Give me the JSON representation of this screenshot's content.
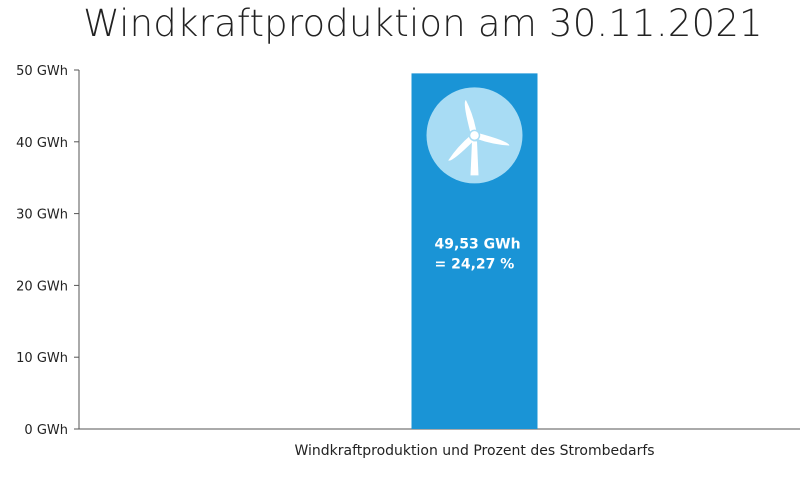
{
  "chart_data": {
    "type": "bar",
    "title": "Windkraftproduktion am 30.11.2021",
    "categories": [
      "Windkraftproduktion und Prozent des Strombedarfs"
    ],
    "values": [
      49.53
    ],
    "ylim": [
      0,
      50
    ],
    "yticks": [
      "0 GWh",
      "10 GWh",
      "20 GWh",
      "30 GWh",
      "40 GWh",
      "50 GWh"
    ],
    "ytick_values": [
      0,
      10,
      20,
      30,
      40,
      50
    ],
    "data_labels": [
      "49,53 GWh",
      "= 24,27 %"
    ],
    "bar_color": "#1a94d6",
    "icon": "wind-turbine-icon",
    "icon_bg_color": "#a8dcf4",
    "grid": false,
    "legend": "none"
  }
}
